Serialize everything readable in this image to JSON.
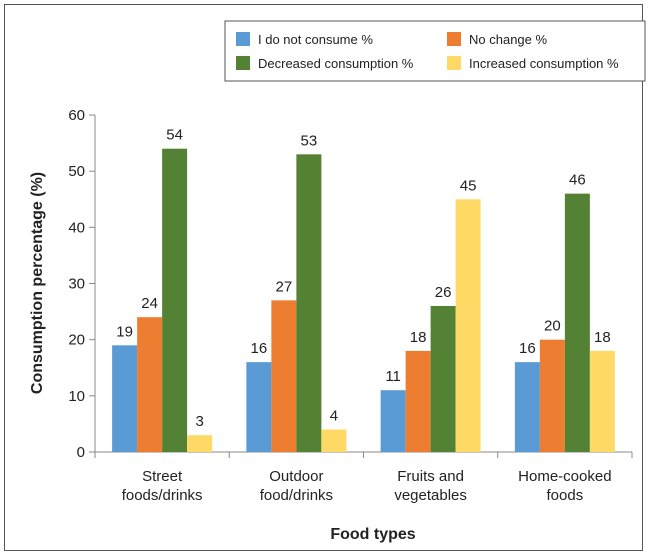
{
  "chart_data": {
    "type": "bar",
    "title": "",
    "xlabel": "Food types",
    "ylabel": "Consumption percentage (%)",
    "ylim": [
      0,
      60
    ],
    "yticks": [
      0,
      10,
      20,
      30,
      40,
      50,
      60
    ],
    "categories": [
      [
        "Street",
        "foods/drinks"
      ],
      [
        "Outdoor",
        "food/drinks"
      ],
      [
        "Fruits and",
        "vegetables"
      ],
      [
        "Home-cooked",
        "foods"
      ]
    ],
    "series": [
      {
        "name": "I do not consume %",
        "color": "#5b9bd5",
        "values": [
          19,
          16,
          11,
          16
        ]
      },
      {
        "name": "No change %",
        "color": "#ed7d31",
        "values": [
          24,
          27,
          18,
          20
        ]
      },
      {
        "name": "Decreased consumption %",
        "color": "#548235",
        "values": [
          54,
          53,
          26,
          46
        ]
      },
      {
        "name": "Increased consumption %",
        "color": "#ffd966",
        "values": [
          3,
          4,
          45,
          18
        ]
      }
    ],
    "legend_position": "top-right",
    "grid": false
  }
}
